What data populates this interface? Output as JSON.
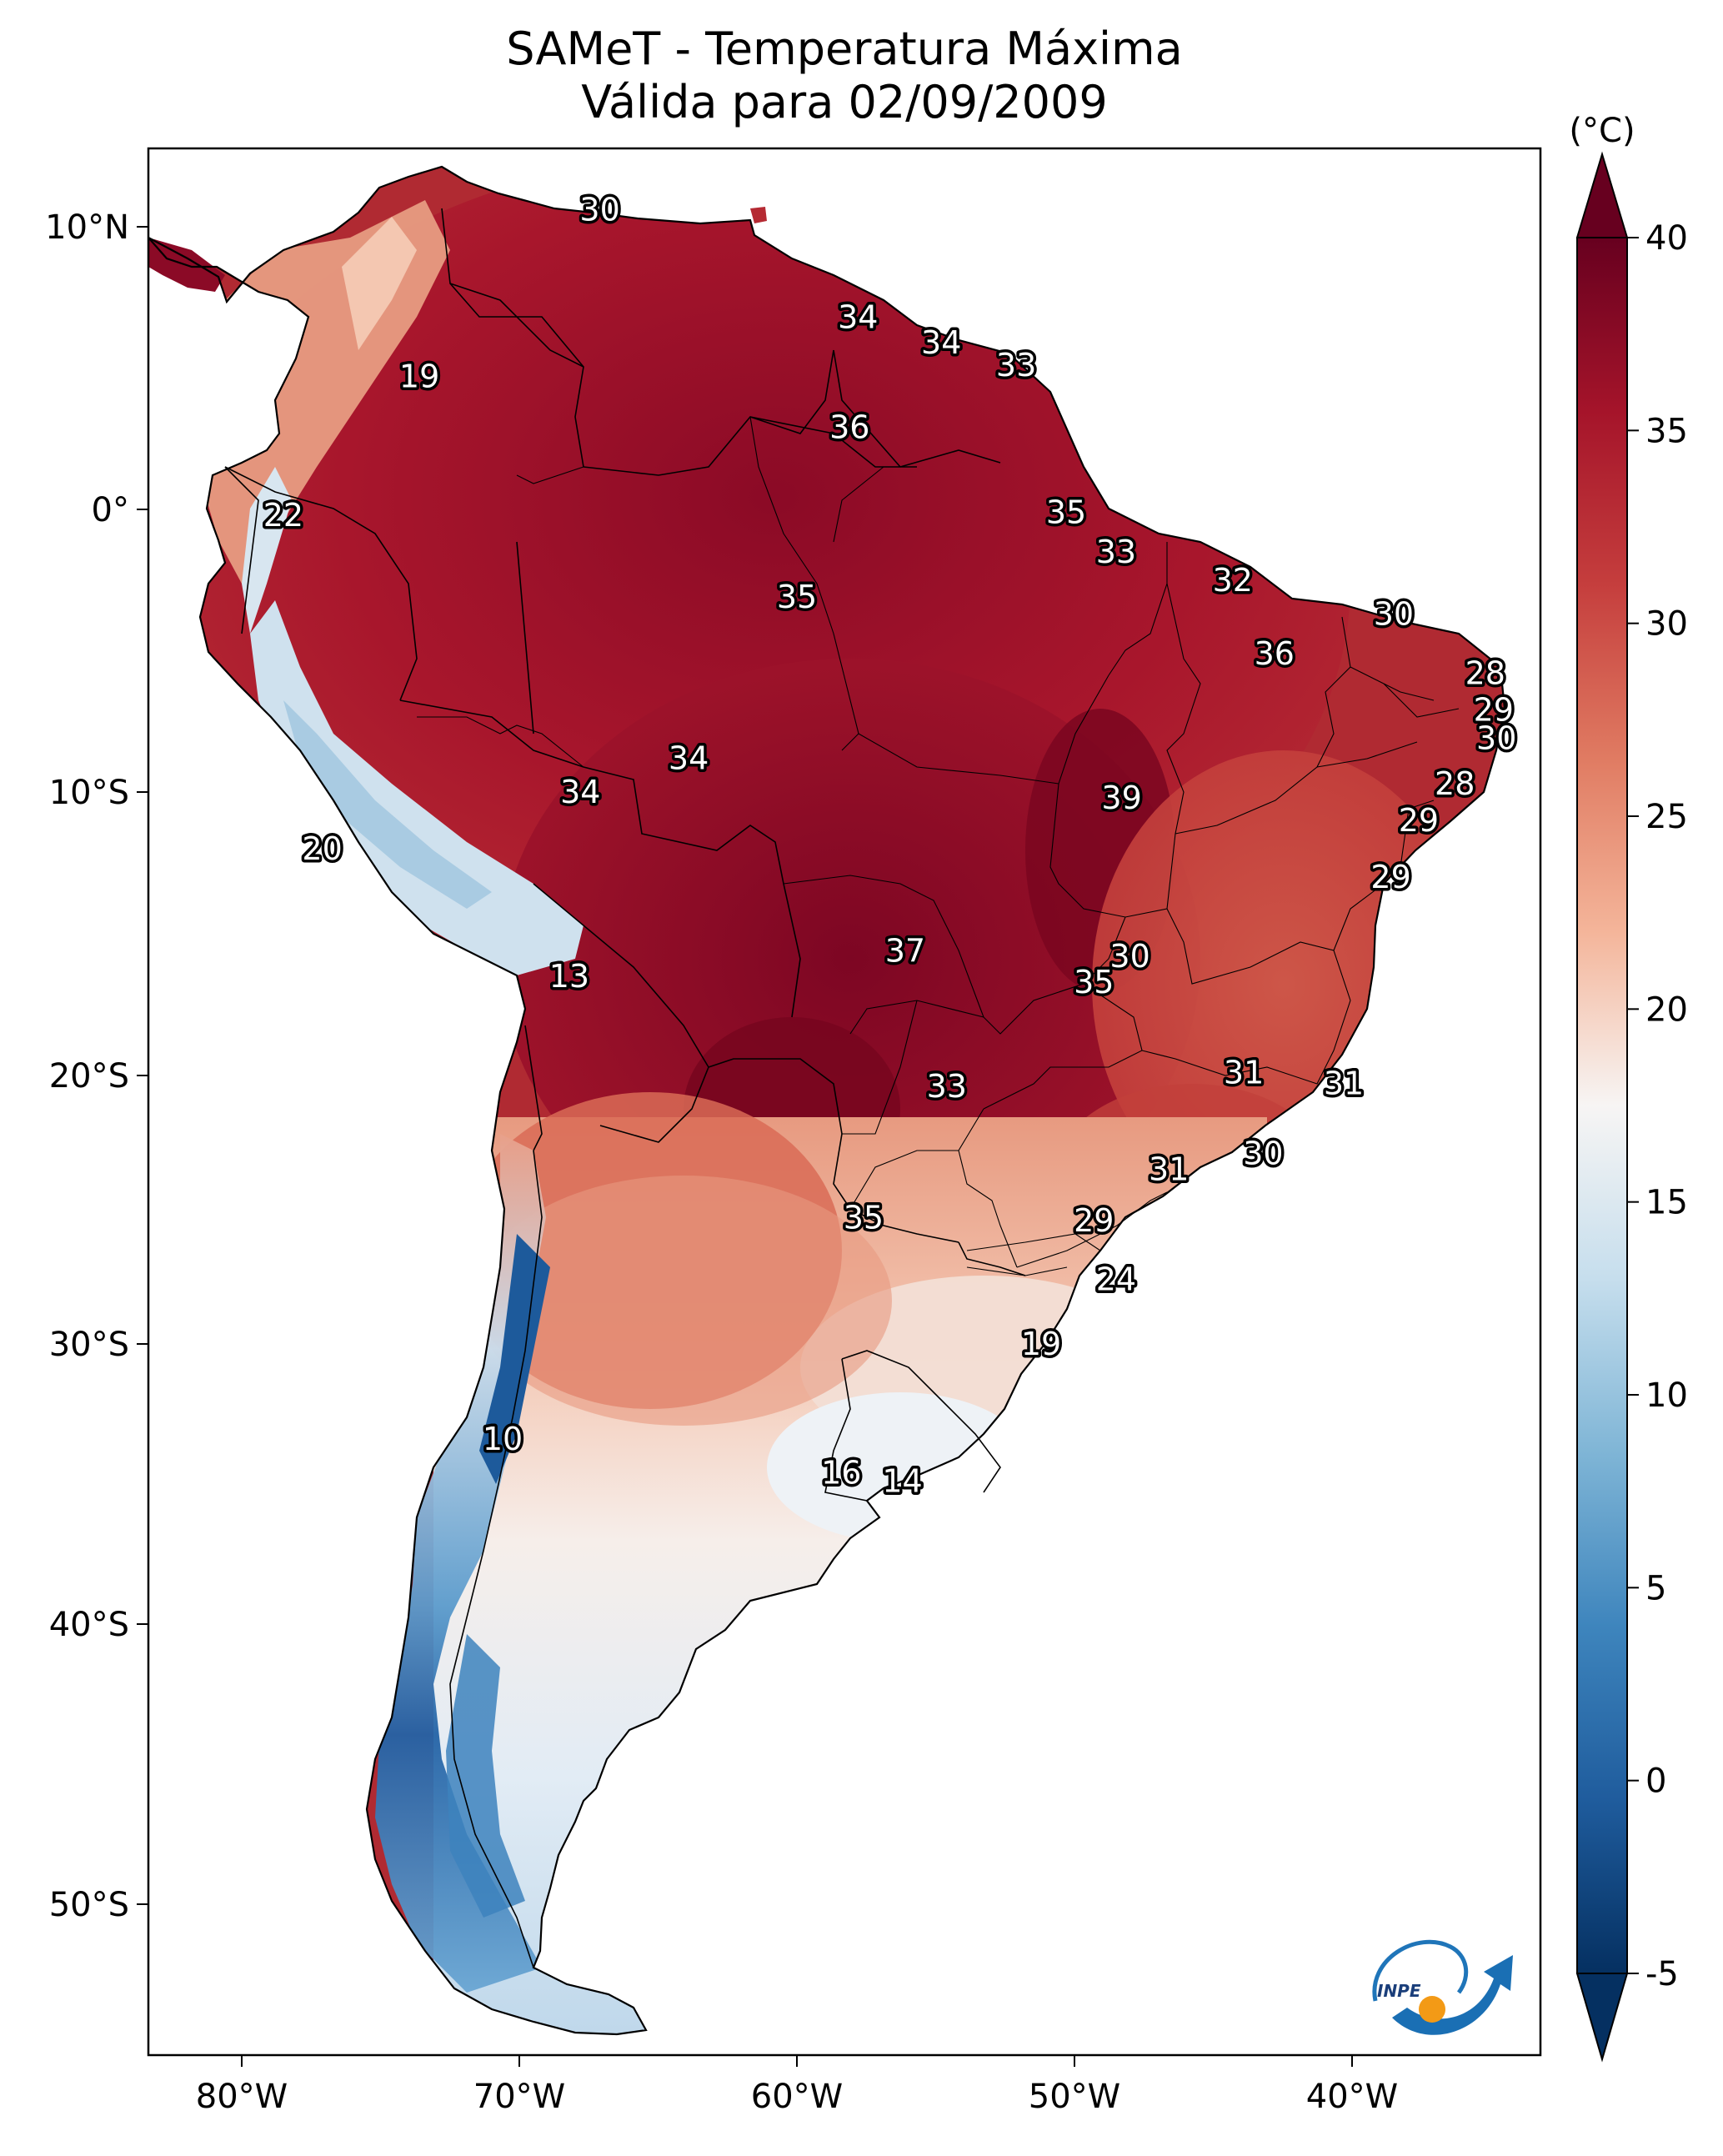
{
  "title": {
    "line1": "SAMeT - Temperatura Máxima",
    "line2": "Válida para 02/09/2009"
  },
  "colorbar": {
    "unit": "(°C)",
    "ticks": [
      "40",
      "35",
      "30",
      "25",
      "20",
      "15",
      "10",
      "5",
      "0",
      "-5"
    ],
    "range": [
      -5,
      40
    ],
    "colormap": "RdBu_r",
    "colors": {
      "low": "#083064",
      "mid_low": "#4d92c4",
      "neutral": "#f6f4f2",
      "mid_high": "#e0785f",
      "high": "#6a0420"
    }
  },
  "axes": {
    "lat_ticks": [
      "10°N",
      "0°",
      "10°S",
      "20°S",
      "30°S",
      "40°S",
      "50°S"
    ],
    "lon_ticks": [
      "80°W",
      "70°W",
      "60°W",
      "50°W",
      "40°W"
    ]
  },
  "map": {
    "region": "South America",
    "extent": {
      "lon": [
        -83,
        -33
      ],
      "lat": [
        -57,
        13
      ]
    },
    "field": "daily maximum temperature"
  },
  "station_values": [
    {
      "label": "30",
      "lon": -67.1,
      "lat": 10.6
    },
    {
      "label": "19",
      "lon": -73.6,
      "lat": 4.7
    },
    {
      "label": "34",
      "lon": -57.8,
      "lat": 6.8
    },
    {
      "label": "34",
      "lon": -54.8,
      "lat": 5.9
    },
    {
      "label": "33",
      "lon": -52.1,
      "lat": 5.1
    },
    {
      "label": "36",
      "lon": -58.1,
      "lat": 2.9
    },
    {
      "label": "22",
      "lon": -78.5,
      "lat": -0.2
    },
    {
      "label": "35",
      "lon": -60.0,
      "lat": -3.1
    },
    {
      "label": "35",
      "lon": -50.3,
      "lat": -0.1
    },
    {
      "label": "33",
      "lon": -48.5,
      "lat": -1.5
    },
    {
      "label": "32",
      "lon": -44.3,
      "lat": -2.5
    },
    {
      "label": "30",
      "lon": -38.5,
      "lat": -3.7
    },
    {
      "label": "36",
      "lon": -42.8,
      "lat": -5.1
    },
    {
      "label": "28",
      "lon": -35.2,
      "lat": -5.8
    },
    {
      "label": "29",
      "lon": -34.9,
      "lat": -7.1
    },
    {
      "label": "30",
      "lon": -34.8,
      "lat": -8.1
    },
    {
      "label": "34",
      "lon": -63.9,
      "lat": -8.8
    },
    {
      "label": "34",
      "lon": -67.8,
      "lat": -10.0
    },
    {
      "label": "39",
      "lon": -48.3,
      "lat": -10.2
    },
    {
      "label": "28",
      "lon": -36.3,
      "lat": -9.7
    },
    {
      "label": "29",
      "lon": -37.6,
      "lat": -11.0
    },
    {
      "label": "20",
      "lon": -77.1,
      "lat": -12.0
    },
    {
      "label": "29",
      "lon": -38.6,
      "lat": -13.0
    },
    {
      "label": "37",
      "lon": -56.1,
      "lat": -15.6
    },
    {
      "label": "30",
      "lon": -48.0,
      "lat": -15.8
    },
    {
      "label": "35",
      "lon": -49.3,
      "lat": -16.7
    },
    {
      "label": "13",
      "lon": -68.2,
      "lat": -16.5
    },
    {
      "label": "31",
      "lon": -43.9,
      "lat": -19.9
    },
    {
      "label": "31",
      "lon": -40.3,
      "lat": -20.3
    },
    {
      "label": "33",
      "lon": -54.6,
      "lat": -20.4
    },
    {
      "label": "30",
      "lon": -43.2,
      "lat": -22.9
    },
    {
      "label": "31",
      "lon": -46.6,
      "lat": -23.5
    },
    {
      "label": "35",
      "lon": -57.6,
      "lat": -25.3
    },
    {
      "label": "29",
      "lon": -49.3,
      "lat": -25.4
    },
    {
      "label": "24",
      "lon": -48.5,
      "lat": -27.6
    },
    {
      "label": "19",
      "lon": -51.2,
      "lat": -30.0
    },
    {
      "label": "10",
      "lon": -70.6,
      "lat": -33.4
    },
    {
      "label": "16",
      "lon": -58.4,
      "lat": -34.6
    },
    {
      "label": "14",
      "lon": -56.2,
      "lat": -34.9
    }
  ],
  "logo": {
    "text": "INPE"
  }
}
